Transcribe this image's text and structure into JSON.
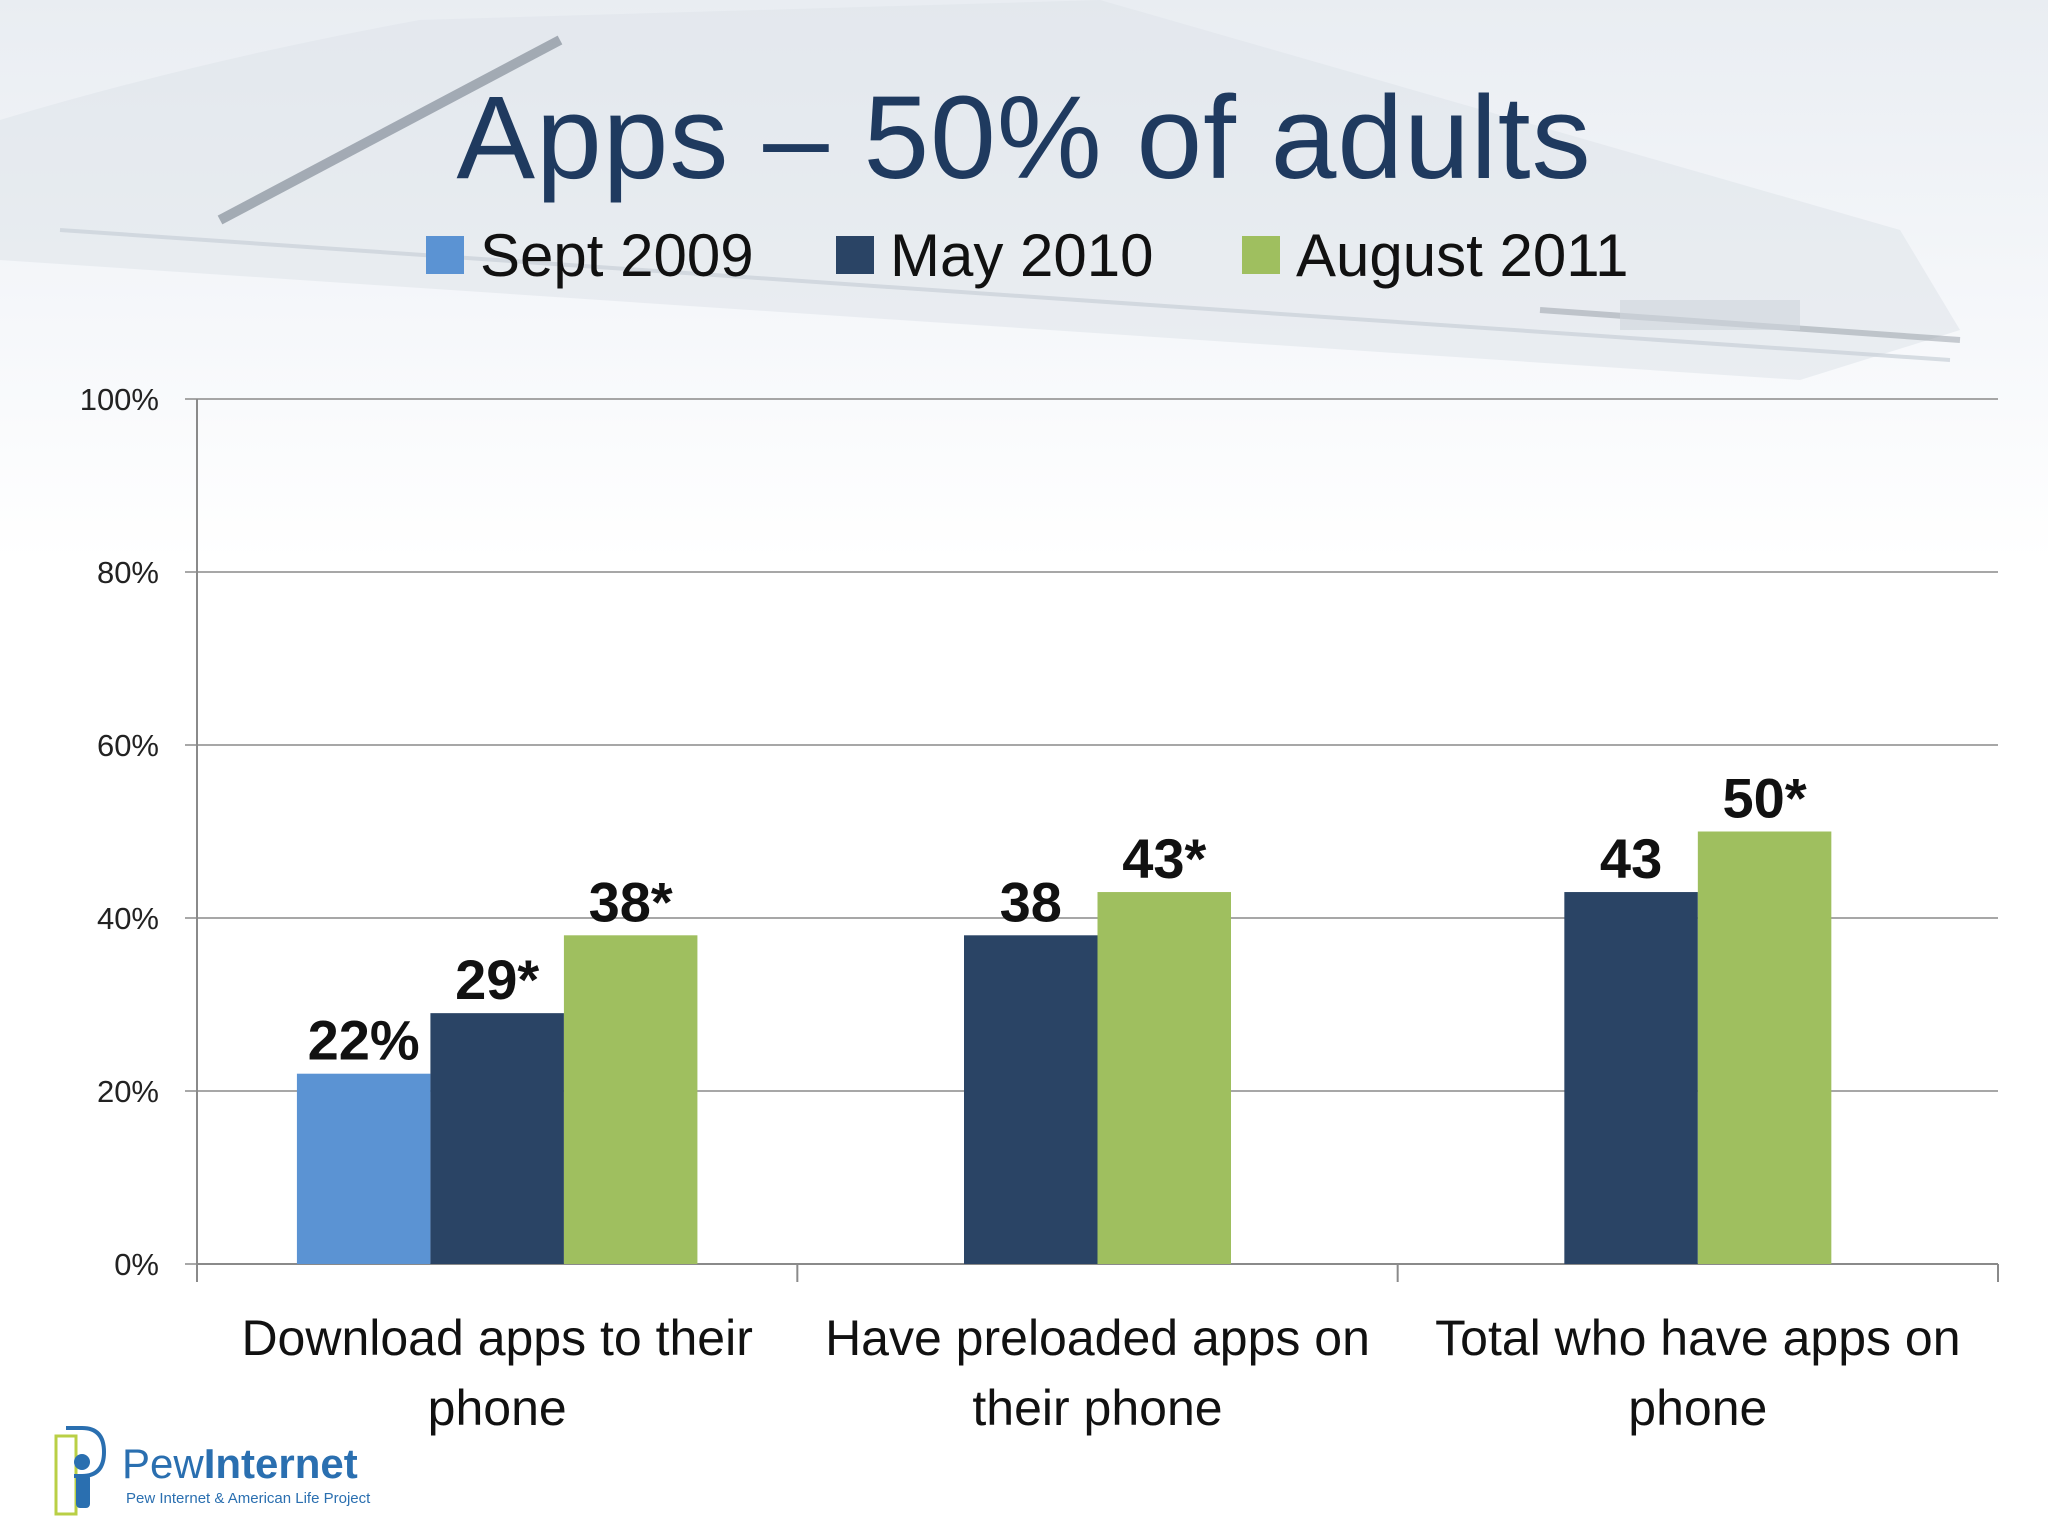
{
  "slide": {
    "title": "Apps – 50% of adults"
  },
  "logo": {
    "name_part1": "Pew",
    "name_part2": "Internet",
    "subtitle": "Pew Internet & American Life Project"
  },
  "colors": {
    "title": "#1f3a5f",
    "sept2009": "#5b93d3",
    "may2010": "#2a4465",
    "aug2011": "#9fbf5f"
  },
  "chart_data": {
    "type": "bar",
    "categories": [
      [
        "Download apps to their",
        "phone"
      ],
      [
        "Have preloaded apps on",
        "their phone"
      ],
      [
        "Total who have apps on",
        "phone"
      ]
    ],
    "series": [
      {
        "name": "Sept 2009",
        "color": "#5b93d3",
        "values": [
          22,
          null,
          null
        ],
        "labels": [
          "22%",
          null,
          null
        ]
      },
      {
        "name": "May 2010",
        "color": "#2a4465",
        "values": [
          29,
          38,
          43
        ],
        "labels": [
          "29*",
          "38",
          "43"
        ]
      },
      {
        "name": "August 2011",
        "color": "#9fbf5f",
        "values": [
          38,
          43,
          50
        ],
        "labels": [
          "38*",
          "43*",
          "50*"
        ]
      }
    ],
    "ylim": [
      0,
      100
    ],
    "yticks": [
      "0%",
      "20%",
      "40%",
      "60%",
      "80%",
      "100%"
    ],
    "grid": true,
    "legend": "top"
  }
}
